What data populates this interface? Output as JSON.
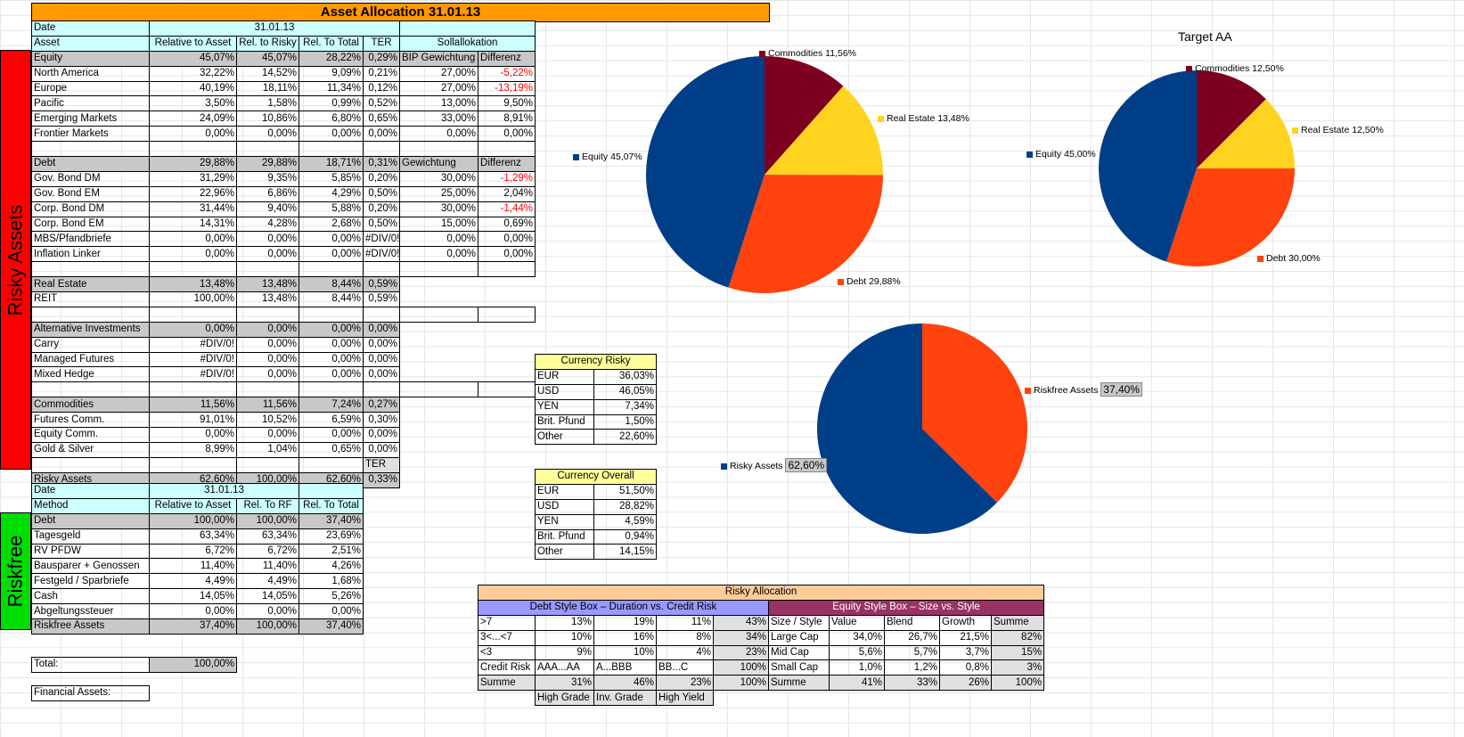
{
  "title": "Asset Allocation 31.01.13",
  "sidebar": {
    "risky": "Risky Assets",
    "riskfree": "Riskfree"
  },
  "colors": {
    "equity": "#003f87",
    "debt": "#ff420e",
    "real_estate": "#ffd320",
    "commodities": "#7e0021",
    "title_bg": "#ff9900",
    "risky_bar": "#ff0000",
    "riskfree_bar": "#00dd00"
  },
  "risky": {
    "date_label": "Date",
    "date_value": "31.01.13",
    "headers": [
      "Asset",
      "Relative to Asset",
      "Rel. to Risky",
      "Rel. To Total",
      "TER",
      "Sollallokation"
    ],
    "rows": [
      {
        "style": "gray",
        "cells": [
          "Equity",
          "45,07%",
          "45,07%",
          "28,22%",
          "0,29%",
          "BIP Gewichtung",
          "Differenz"
        ]
      },
      {
        "style": "",
        "cells": [
          "North America",
          "32,22%",
          "14,52%",
          "9,09%",
          "0,21%",
          "27,00%",
          "-5,22%"
        ],
        "neg": true
      },
      {
        "style": "",
        "cells": [
          "Europe",
          "40,19%",
          "18,11%",
          "11,34%",
          "0,12%",
          "27,00%",
          "-13,19%"
        ],
        "neg": true
      },
      {
        "style": "",
        "cells": [
          "Pacific",
          "3,50%",
          "1,58%",
          "0,99%",
          "0,52%",
          "13,00%",
          "9,50%"
        ]
      },
      {
        "style": "",
        "cells": [
          "Emerging Markets",
          "24,09%",
          "10,86%",
          "6,80%",
          "0,65%",
          "33,00%",
          "8,91%"
        ]
      },
      {
        "style": "",
        "cells": [
          "Frontier Markets",
          "0,00%",
          "0,00%",
          "0,00%",
          "0,00%",
          "0,00%",
          "0,00%"
        ]
      },
      {
        "style": "blank",
        "cells": [
          "",
          "",
          "",
          "",
          "",
          "",
          ""
        ]
      },
      {
        "style": "gray",
        "cells": [
          "Debt",
          "29,88%",
          "29,88%",
          "18,71%",
          "0,31%",
          "Gewichtung",
          "Differenz"
        ]
      },
      {
        "style": "",
        "cells": [
          "Gov. Bond DM",
          "31,29%",
          "9,35%",
          "5,85%",
          "0,20%",
          "30,00%",
          "-1,29%"
        ],
        "neg": true
      },
      {
        "style": "",
        "cells": [
          "Gov. Bond EM",
          "22,96%",
          "6,86%",
          "4,29%",
          "0,50%",
          "25,00%",
          "2,04%"
        ]
      },
      {
        "style": "",
        "cells": [
          "Corp. Bond DM",
          "31,44%",
          "9,40%",
          "5,88%",
          "0,20%",
          "30,00%",
          "-1,44%"
        ],
        "neg": true
      },
      {
        "style": "",
        "cells": [
          "Corp. Bond EM",
          "14,31%",
          "4,28%",
          "2,68%",
          "0,50%",
          "15,00%",
          "0,69%"
        ]
      },
      {
        "style": "",
        "cells": [
          "MBS/Pfandbriefe",
          "0,00%",
          "0,00%",
          "0,00%",
          "#DIV/0!",
          "0,00%",
          "0,00%"
        ]
      },
      {
        "style": "",
        "cells": [
          "Inflation Linker",
          "0,00%",
          "0,00%",
          "0,00%",
          "#DIV/0!",
          "0,00%",
          "0,00%"
        ]
      },
      {
        "style": "blank",
        "cells": [
          "",
          "",
          "",
          "",
          "",
          "",
          ""
        ]
      },
      {
        "style": "gray5",
        "cells": [
          "Real Estate",
          "13,48%",
          "13,48%",
          "8,44%",
          "0,59%",
          "",
          ""
        ]
      },
      {
        "style": "five",
        "cells": [
          "REIT",
          "100,00%",
          "13,48%",
          "8,44%",
          "0,59%",
          "",
          ""
        ]
      },
      {
        "style": "blank",
        "cells": [
          "",
          "",
          "",
          "",
          "",
          "",
          ""
        ]
      },
      {
        "style": "gray5",
        "cells": [
          "Alternative Investments",
          "0,00%",
          "0,00%",
          "0,00%",
          "0,00%",
          "",
          ""
        ]
      },
      {
        "style": "five",
        "cells": [
          "Carry",
          "#DIV/0!",
          "0,00%",
          "0,00%",
          "0,00%",
          "",
          ""
        ]
      },
      {
        "style": "five",
        "cells": [
          "Managed Futures",
          "#DIV/0!",
          "0,00%",
          "0,00%",
          "0,00%",
          "",
          ""
        ]
      },
      {
        "style": "five",
        "cells": [
          "Mixed Hedge",
          "#DIV/0!",
          "0,00%",
          "0,00%",
          "0,00%",
          "",
          ""
        ]
      },
      {
        "style": "blank",
        "cells": [
          "",
          "",
          "",
          "",
          "",
          "",
          ""
        ]
      },
      {
        "style": "gray5",
        "cells": [
          "Commodities",
          "11,56%",
          "11,56%",
          "7,24%",
          "0,27%",
          "",
          ""
        ]
      },
      {
        "style": "five",
        "cells": [
          "Futures Comm.",
          "91,01%",
          "10,52%",
          "6,59%",
          "0,30%",
          "",
          ""
        ]
      },
      {
        "style": "five",
        "cells": [
          "Equity Comm.",
          "0,00%",
          "0,00%",
          "0,00%",
          "0,00%",
          "",
          ""
        ]
      },
      {
        "style": "five",
        "cells": [
          "Gold & Silver",
          "8,99%",
          "1,04%",
          "0,65%",
          "0,00%",
          "",
          ""
        ]
      },
      {
        "style": "terlabel",
        "cells": [
          "",
          "",
          "",
          "",
          "TER",
          "",
          ""
        ]
      },
      {
        "style": "gray5",
        "cells": [
          "Risky Assets",
          "62,60%",
          "100,00%",
          "62,60%",
          "0,33%",
          "",
          ""
        ]
      }
    ]
  },
  "riskfree": {
    "date_label": "Date",
    "date_value": "31.01.13",
    "headers": [
      "Method",
      "Relative to Asset",
      "Rel. To RF",
      "Rel. To Total"
    ],
    "rows": [
      {
        "style": "gray",
        "cells": [
          "Debt",
          "100,00%",
          "100,00%",
          "37,40%"
        ]
      },
      {
        "style": "",
        "cells": [
          "Tagesgeld",
          "63,34%",
          "63,34%",
          "23,69%"
        ]
      },
      {
        "style": "",
        "cells": [
          "RV PFDW",
          "6,72%",
          "6,72%",
          "2,51%"
        ]
      },
      {
        "style": "",
        "cells": [
          "Bausparer + Genossen",
          "11,40%",
          "11,40%",
          "4,26%"
        ]
      },
      {
        "style": "",
        "cells": [
          "Festgeld / Sparbriefe",
          "4,49%",
          "4,49%",
          "1,68%"
        ]
      },
      {
        "style": "",
        "cells": [
          "Cash",
          "14,05%",
          "14,05%",
          "5,26%"
        ]
      },
      {
        "style": "",
        "cells": [
          "Abgeltungssteuer",
          "0,00%",
          "0,00%",
          "0,00%"
        ]
      },
      {
        "style": "gray",
        "cells": [
          "Riskfree Assets",
          "37,40%",
          "100,00%",
          "37,40%"
        ]
      }
    ],
    "total_label": "Total:",
    "total_value": "100,00%",
    "financial_label": "Financial Assets:"
  },
  "currency_risky": {
    "title": "Currency Risky",
    "rows": [
      [
        "EUR",
        "36,03%"
      ],
      [
        "USD",
        "46,05%"
      ],
      [
        "YEN",
        "7,34%"
      ],
      [
        "Brit. Pfund",
        "1,50%"
      ],
      [
        "Other",
        "22,60%"
      ]
    ]
  },
  "currency_overall": {
    "title": "Currency Overall",
    "rows": [
      [
        "EUR",
        "51,50%"
      ],
      [
        "USD",
        "28,82%"
      ],
      [
        "YEN",
        "4,59%"
      ],
      [
        "Brit. Pfund",
        "0,94%"
      ],
      [
        "Other",
        "14,15%"
      ]
    ]
  },
  "risky_allocation": {
    "title": "Risky Allocation",
    "debt_title": "Debt Style Box – Duration vs. Credit Risk",
    "equity_title": "Equity Style Box – Size vs. Style",
    "rows": [
      [
        ">7",
        "13%",
        "19%",
        "11%",
        "43%",
        "Size / Style",
        "Value",
        "Blend",
        "Growth",
        "Summe"
      ],
      [
        "3<...<7",
        "10%",
        "16%",
        "8%",
        "34%",
        "Large Cap",
        "34,0%",
        "26,7%",
        "21,5%",
        "82%"
      ],
      [
        "<3",
        "9%",
        "10%",
        "4%",
        "23%",
        "Mid Cap",
        "5,6%",
        "5,7%",
        "3,7%",
        "15%"
      ],
      [
        "Credit Risk",
        "AAA...AA",
        "A...BBB",
        "BB...C",
        "100%",
        "Small Cap",
        "1,0%",
        "1,2%",
        "0,8%",
        "3%"
      ],
      [
        "Summe",
        "31%",
        "46%",
        "23%",
        "100%",
        "Summe",
        "41%",
        "33%",
        "26%",
        "100%"
      ]
    ],
    "footer": [
      "High Grade",
      "Inv. Grade",
      "High Yield"
    ]
  },
  "charts_text": {
    "actual": [
      {
        "key": "commodities",
        "label": "Commodities 11,56%"
      },
      {
        "key": "real_estate",
        "label": "Real Estate 13,48%"
      },
      {
        "key": "debt",
        "label": "Debt 29,88%"
      },
      {
        "key": "equity",
        "label": "Equity 45,07%"
      }
    ],
    "target_title": "Target AA",
    "target": [
      {
        "key": "commodities",
        "label": "Commodities 12,50%"
      },
      {
        "key": "real_estate",
        "label": "Real Estate 12,50%"
      },
      {
        "key": "debt",
        "label": "Debt 30,00%"
      },
      {
        "key": "equity",
        "label": "Equity 45,00%"
      }
    ],
    "risk": [
      {
        "key": "riskfree",
        "label": "Riskfree Assets",
        "value": "37,40%"
      },
      {
        "key": "risky",
        "label": "Risky Assets",
        "value": "62,60%"
      }
    ]
  },
  "chart_data": [
    {
      "type": "pie",
      "title": "",
      "categories": [
        "Commodities",
        "Real Estate",
        "Debt",
        "Equity"
      ],
      "values": [
        11.56,
        13.48,
        29.88,
        45.07
      ]
    },
    {
      "type": "pie",
      "title": "Target AA",
      "categories": [
        "Commodities",
        "Real Estate",
        "Debt",
        "Equity"
      ],
      "values": [
        12.5,
        12.5,
        30.0,
        45.0
      ]
    },
    {
      "type": "pie",
      "title": "",
      "categories": [
        "Riskfree Assets",
        "Risky Assets"
      ],
      "values": [
        37.4,
        62.6
      ]
    }
  ]
}
